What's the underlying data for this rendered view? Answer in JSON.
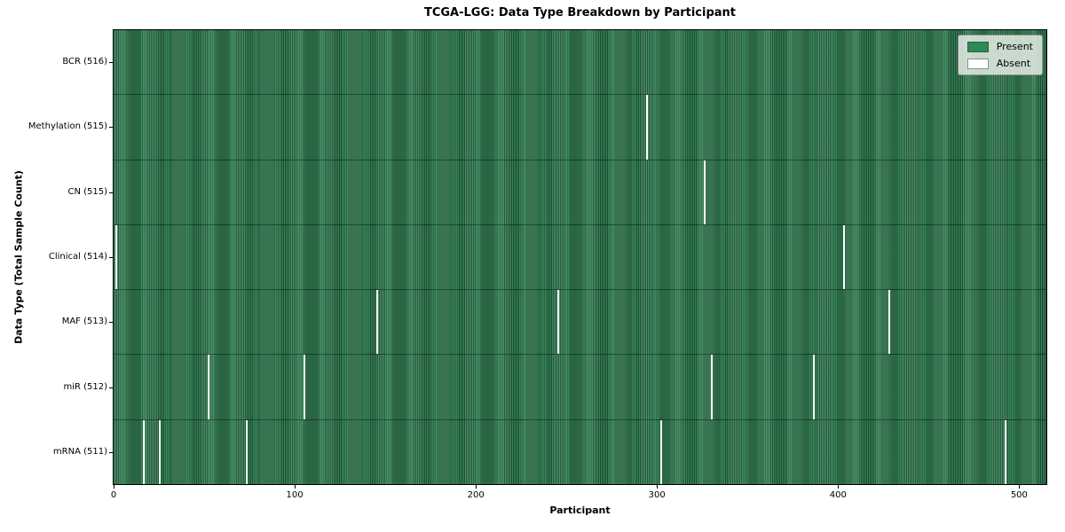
{
  "title": "TCGA-LGG: Data Type Breakdown by Participant",
  "legend": {
    "present_label": "Present",
    "absent_label": "Absent"
  },
  "colors": {
    "present": "#2e8b57",
    "present_stripe_light": "#3a8a5c",
    "present_stripe_dark": "#1e4d33",
    "absent": "#ffffff"
  },
  "chart_data": {
    "type": "heatmap",
    "title": "TCGA-LGG: Data Type Breakdown by Participant",
    "xlabel": "Participant",
    "ylabel": "Data Type (Total Sample Count)",
    "n_participants": 516,
    "xlim": [
      -0.5,
      515.5
    ],
    "x_ticks": [
      0,
      100,
      200,
      300,
      400,
      500
    ],
    "grid": false,
    "legend_position": "upper right",
    "legend_entries": [
      {
        "label": "Present",
        "color": "#2e8b57"
      },
      {
        "label": "Absent",
        "color": "#ffffff"
      }
    ],
    "rows": [
      {
        "data_type": "BCR",
        "label": "BCR (516)",
        "present_count": 516,
        "absent_participants": []
      },
      {
        "data_type": "Methylation",
        "label": "Methylation (515)",
        "present_count": 515,
        "absent_participants": [
          294
        ]
      },
      {
        "data_type": "CN",
        "label": "CN (515)",
        "present_count": 515,
        "absent_participants": [
          326
        ]
      },
      {
        "data_type": "Clinical",
        "label": "Clinical (514)",
        "present_count": 514,
        "absent_participants": [
          1,
          403
        ]
      },
      {
        "data_type": "MAF",
        "label": "MAF (513)",
        "present_count": 513,
        "absent_participants": [
          145,
          245,
          428
        ]
      },
      {
        "data_type": "miR",
        "label": "miR (512)",
        "present_count": 512,
        "absent_participants": [
          52,
          105,
          330,
          386
        ]
      },
      {
        "data_type": "mRNA",
        "label": "mRNA (511)",
        "present_count": 511,
        "absent_participants": [
          16,
          25,
          73,
          302,
          492
        ]
      }
    ]
  }
}
